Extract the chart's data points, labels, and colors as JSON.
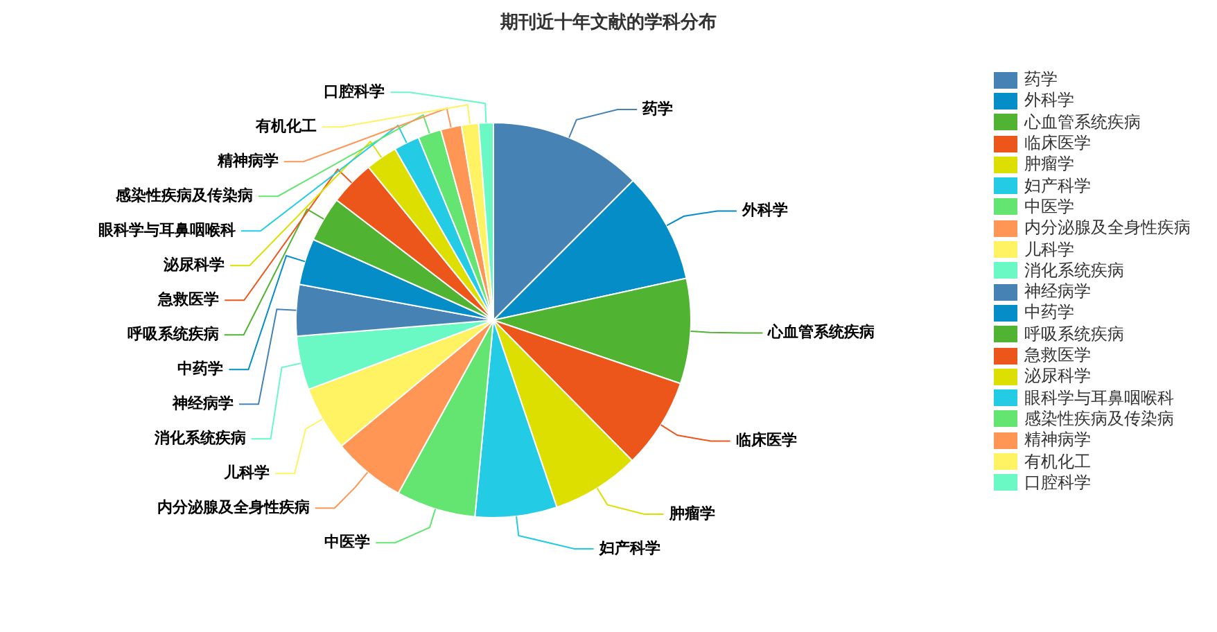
{
  "chart_data": {
    "type": "pie",
    "title": "期刊近十年文献的学科分布",
    "categories": [
      "药学",
      "外科学",
      "心血管系统疾病",
      "临床医学",
      "肿瘤学",
      "妇产科学",
      "中医学",
      "内分泌腺及全身性疾病",
      "儿科学",
      "消化系统疾病",
      "神经病学",
      "中药学",
      "呼吸系统疾病",
      "急救医学",
      "泌尿科学",
      "眼科学与耳鼻咽喉科",
      "感染性疾病及传染病",
      "精神病学",
      "有机化工",
      "口腔科学"
    ],
    "values": [
      12.5,
      9.1,
      8.6,
      7.4,
      7.2,
      6.7,
      6.5,
      6.0,
      5.3,
      4.4,
      4.2,
      3.8,
      3.7,
      3.7,
      2.6,
      2.1,
      1.9,
      1.7,
      1.4,
      1.2
    ],
    "colors": [
      "#4682b4",
      "#058dc7",
      "#50b432",
      "#ed561b",
      "#dddf00",
      "#24cbe5",
      "#64e572",
      "#ff9655",
      "#fff263",
      "#6af9c4",
      "#4682b4",
      "#058dc7",
      "#50b432",
      "#ed561b",
      "#dddf00",
      "#24cbe5",
      "#64e572",
      "#ff9655",
      "#fff263",
      "#6af9c4"
    ],
    "legend": "right"
  }
}
